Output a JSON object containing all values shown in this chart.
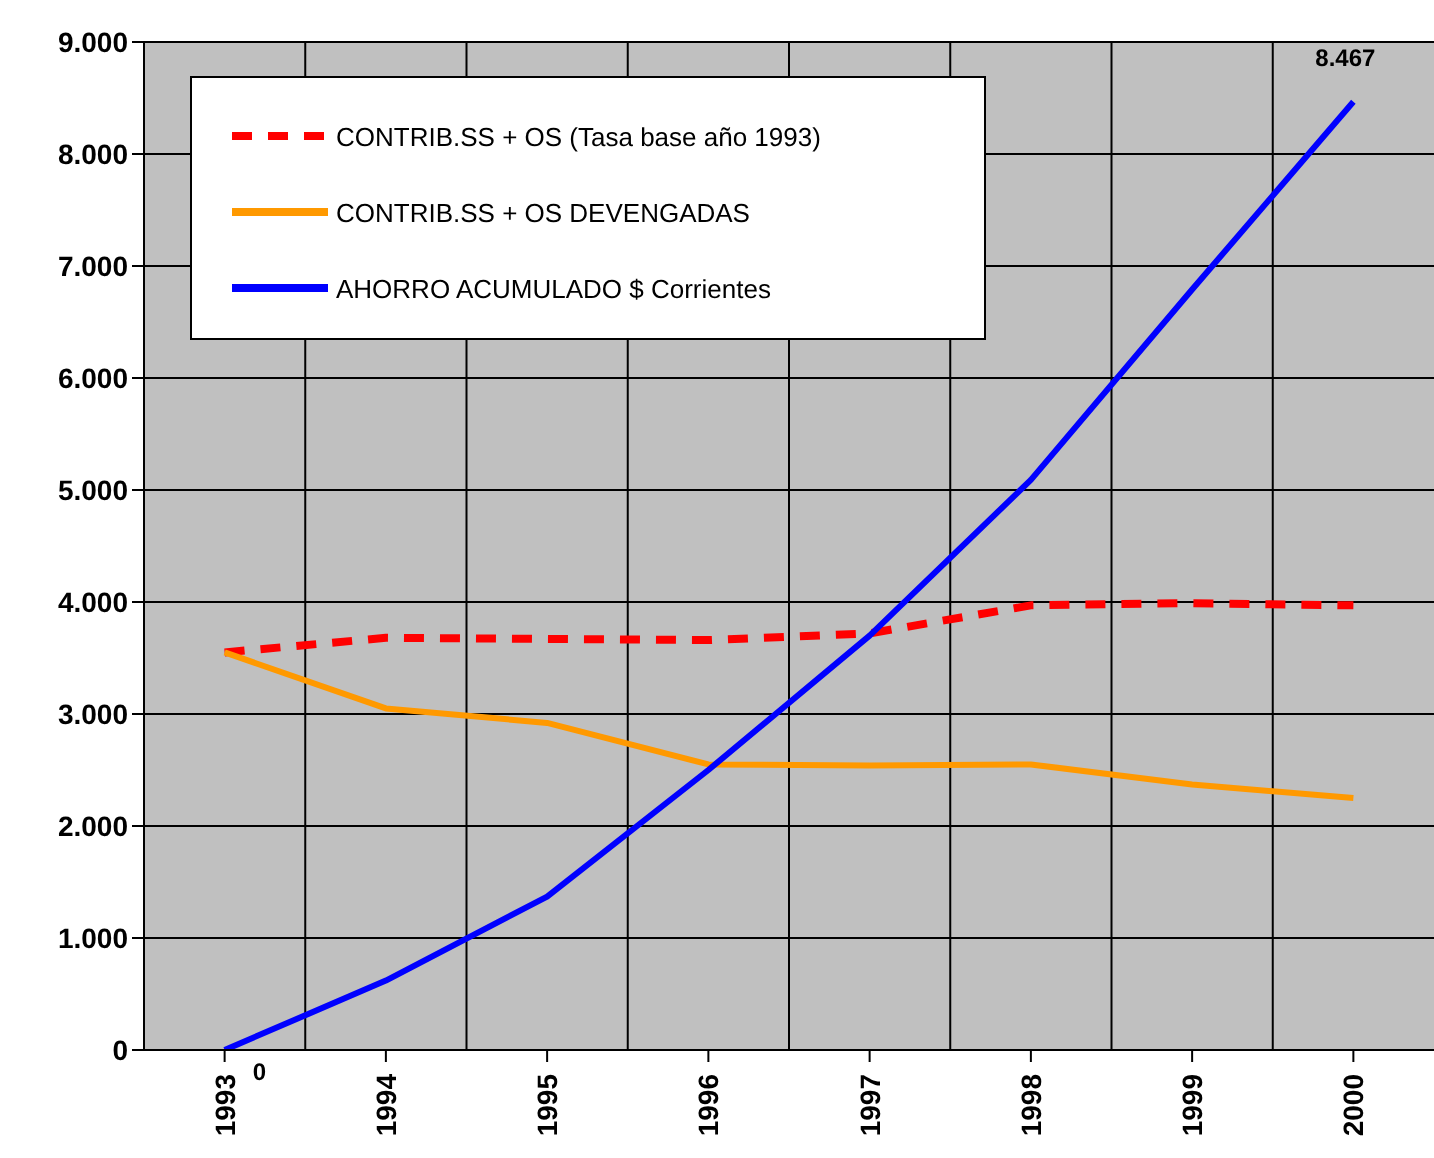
{
  "chart_data": {
    "type": "line",
    "categories": [
      "1993",
      "1994",
      "1995",
      "1996",
      "1997",
      "1998",
      "1999",
      "2000"
    ],
    "series": [
      {
        "name": "CONTRIB.SS + OS (Tasa base año 1993)",
        "color": "#ff0000",
        "line_style": "dashed",
        "values": [
          3550,
          3680,
          3670,
          3660,
          3720,
          3970,
          3990,
          3970
        ]
      },
      {
        "name": "CONTRIB.SS + OS DEVENGADAS",
        "color": "#ff9900",
        "line_style": "solid",
        "values": [
          3550,
          3050,
          2920,
          2550,
          2540,
          2550,
          2370,
          2250
        ]
      },
      {
        "name": "AHORRO ACUMULADO $ Corrientes",
        "color": "#0000ff",
        "line_style": "solid",
        "values": [
          0,
          620,
          1370,
          2500,
          3700,
          5090,
          6790,
          8467
        ],
        "value_labels": [
          "0",
          null,
          null,
          null,
          null,
          null,
          null,
          "8.467"
        ]
      }
    ],
    "ylim": [
      0,
      9000
    ],
    "yticks": [
      {
        "value": 0,
        "label": "0"
      },
      {
        "value": 1000,
        "label": "1.000"
      },
      {
        "value": 2000,
        "label": "2.000"
      },
      {
        "value": 3000,
        "label": "3.000"
      },
      {
        "value": 4000,
        "label": "4.000"
      },
      {
        "value": 5000,
        "label": "5.000"
      },
      {
        "value": 6000,
        "label": "6.000"
      },
      {
        "value": 7000,
        "label": "7.000"
      },
      {
        "value": 8000,
        "label": "8.000"
      },
      {
        "value": 9000,
        "label": "9.000"
      }
    ],
    "grid": true,
    "legend": "top left",
    "marker": "none"
  }
}
